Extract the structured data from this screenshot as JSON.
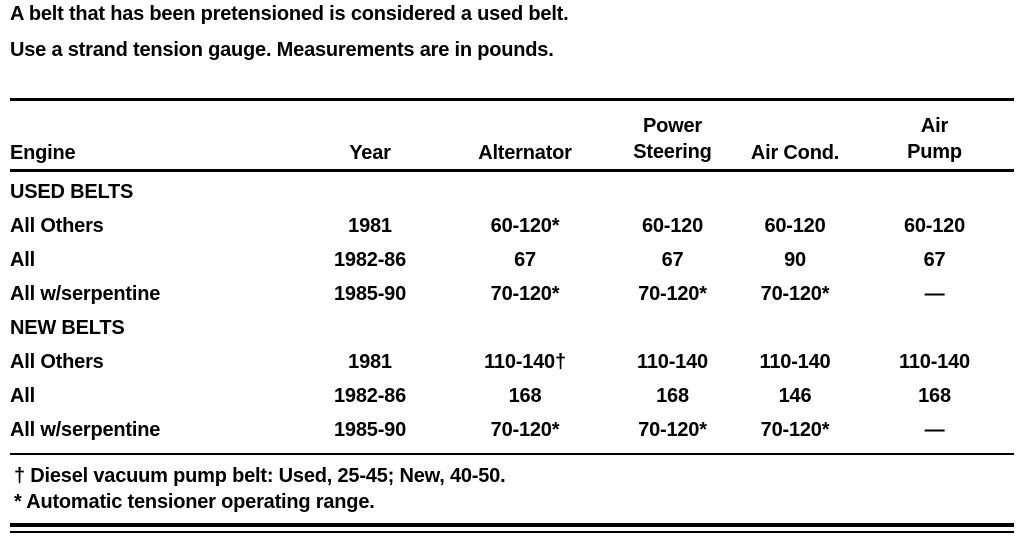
{
  "intro": {
    "line1": "A belt that has been pretensioned is considered a used belt.",
    "line2": "Use a strand tension gauge. Measurements are in pounds."
  },
  "table": {
    "headers": {
      "engine": "Engine",
      "year": "Year",
      "alternator": "Alternator",
      "power_steering_top": "Power",
      "power_steering_bottom": "Steering",
      "air_cond": "Air Cond.",
      "air_pump_top": "Air",
      "air_pump_bottom": "Pump"
    },
    "sections": [
      {
        "title": "USED BELTS",
        "rows": [
          {
            "engine": "All Others",
            "year": "1981",
            "alternator": "60-120*",
            "power_steering": "60-120",
            "air_cond": "60-120",
            "air_pump": "60-120"
          },
          {
            "engine": "All",
            "year": "1982-86",
            "alternator": "67",
            "power_steering": "67",
            "air_cond": "90",
            "air_pump": "67"
          },
          {
            "engine": "All w/serpentine",
            "year": "1985-90",
            "alternator": "70-120*",
            "power_steering": "70-120*",
            "air_cond": "70-120*",
            "air_pump": "—"
          }
        ]
      },
      {
        "title": "NEW BELTS",
        "rows": [
          {
            "engine": "All Others",
            "year": "1981",
            "alternator": "110-140†",
            "power_steering": "110-140",
            "air_cond": "110-140",
            "air_pump": "110-140"
          },
          {
            "engine": "All",
            "year": "1982-86",
            "alternator": "168",
            "power_steering": "168",
            "air_cond": "146",
            "air_pump": "168"
          },
          {
            "engine": "All w/serpentine",
            "year": "1985-90",
            "alternator": "70-120*",
            "power_steering": "70-120*",
            "air_cond": "70-120*",
            "air_pump": "—"
          }
        ]
      }
    ],
    "footnotes": [
      "† Diesel vacuum pump belt: Used, 25-45; New, 40-50.",
      "* Automatic tensioner operating range."
    ]
  },
  "colors": {
    "ink": "#000000",
    "paper": "#ffffff"
  }
}
